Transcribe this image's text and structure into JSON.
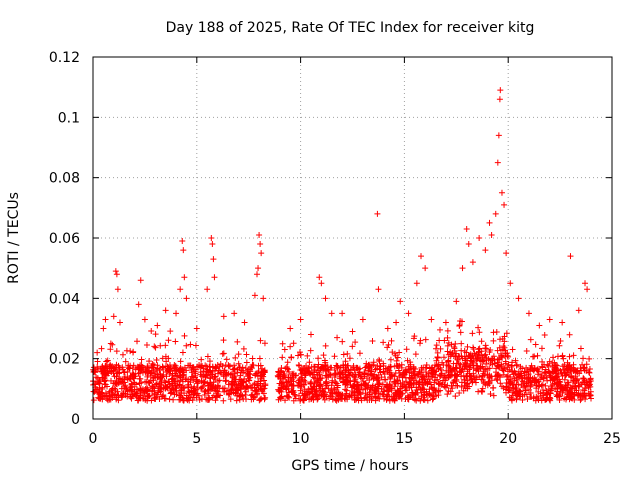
{
  "chart_data": {
    "type": "scatter",
    "title": "Day 188 of 2025, Rate Of TEC Index for receiver kitg",
    "xlabel": "GPS time / hours",
    "ylabel": "ROTI / TECUs",
    "xlim": [
      0,
      25
    ],
    "ylim": [
      0,
      0.12
    ],
    "x_ticks": [
      0,
      5,
      10,
      15,
      20,
      25
    ],
    "x_tick_labels": [
      "0",
      "5",
      "10",
      "15",
      "20",
      "25"
    ],
    "y_ticks": [
      0,
      0.02,
      0.04,
      0.06,
      0.08,
      0.1,
      0.12
    ],
    "y_tick_labels": [
      "0",
      "0.02",
      "0.04",
      "0.06",
      "0.08",
      "0.1",
      "0.12"
    ],
    "grid": true,
    "marker": "+",
    "color": "#ff0000",
    "data_gap_hours": [
      8.3,
      8.9
    ],
    "series": [
      {
        "name": "ROTI",
        "note": "dense band approx 0.005-0.02 TECU/s across 0-8.3h and 8.9-24h; representative outliers listed",
        "points": [
          [
            0.2,
            0.022
          ],
          [
            0.5,
            0.03
          ],
          [
            0.6,
            0.033
          ],
          [
            1.0,
            0.034
          ],
          [
            1.1,
            0.049
          ],
          [
            1.15,
            0.048
          ],
          [
            1.2,
            0.043
          ],
          [
            1.3,
            0.032
          ],
          [
            2.2,
            0.038
          ],
          [
            2.3,
            0.046
          ],
          [
            2.5,
            0.033
          ],
          [
            3.1,
            0.031
          ],
          [
            3.5,
            0.036
          ],
          [
            4.0,
            0.035
          ],
          [
            4.2,
            0.043
          ],
          [
            4.3,
            0.059
          ],
          [
            4.35,
            0.056
          ],
          [
            4.4,
            0.047
          ],
          [
            4.5,
            0.04
          ],
          [
            5.0,
            0.03
          ],
          [
            5.5,
            0.043
          ],
          [
            5.7,
            0.06
          ],
          [
            5.75,
            0.058
          ],
          [
            5.8,
            0.053
          ],
          [
            5.85,
            0.047
          ],
          [
            6.3,
            0.034
          ],
          [
            6.8,
            0.035
          ],
          [
            7.3,
            0.032
          ],
          [
            7.8,
            0.041
          ],
          [
            7.9,
            0.048
          ],
          [
            7.95,
            0.05
          ],
          [
            8.0,
            0.061
          ],
          [
            8.05,
            0.058
          ],
          [
            8.1,
            0.055
          ],
          [
            8.2,
            0.04
          ],
          [
            9.5,
            0.03
          ],
          [
            10.0,
            0.033
          ],
          [
            10.5,
            0.028
          ],
          [
            10.9,
            0.047
          ],
          [
            11.0,
            0.045
          ],
          [
            11.2,
            0.04
          ],
          [
            11.5,
            0.035
          ],
          [
            12.0,
            0.035
          ],
          [
            12.5,
            0.029
          ],
          [
            13.0,
            0.033
          ],
          [
            13.7,
            0.068
          ],
          [
            13.75,
            0.043
          ],
          [
            14.2,
            0.03
          ],
          [
            14.6,
            0.032
          ],
          [
            14.8,
            0.039
          ],
          [
            15.2,
            0.035
          ],
          [
            15.6,
            0.045
          ],
          [
            15.8,
            0.054
          ],
          [
            16.0,
            0.05
          ],
          [
            16.3,
            0.033
          ],
          [
            17.0,
            0.032
          ],
          [
            17.5,
            0.039
          ],
          [
            17.8,
            0.05
          ],
          [
            18.0,
            0.063
          ],
          [
            18.1,
            0.058
          ],
          [
            18.3,
            0.052
          ],
          [
            18.6,
            0.06
          ],
          [
            18.9,
            0.056
          ],
          [
            19.1,
            0.065
          ],
          [
            19.2,
            0.061
          ],
          [
            19.4,
            0.068
          ],
          [
            19.5,
            0.085
          ],
          [
            19.55,
            0.094
          ],
          [
            19.6,
            0.106
          ],
          [
            19.62,
            0.109
          ],
          [
            19.7,
            0.075
          ],
          [
            19.8,
            0.071
          ],
          [
            19.9,
            0.055
          ],
          [
            20.1,
            0.045
          ],
          [
            20.5,
            0.04
          ],
          [
            21.0,
            0.035
          ],
          [
            21.5,
            0.031
          ],
          [
            22.0,
            0.033
          ],
          [
            22.6,
            0.032
          ],
          [
            23.0,
            0.054
          ],
          [
            23.4,
            0.036
          ],
          [
            23.7,
            0.045
          ],
          [
            23.8,
            0.043
          ]
        ]
      }
    ]
  }
}
